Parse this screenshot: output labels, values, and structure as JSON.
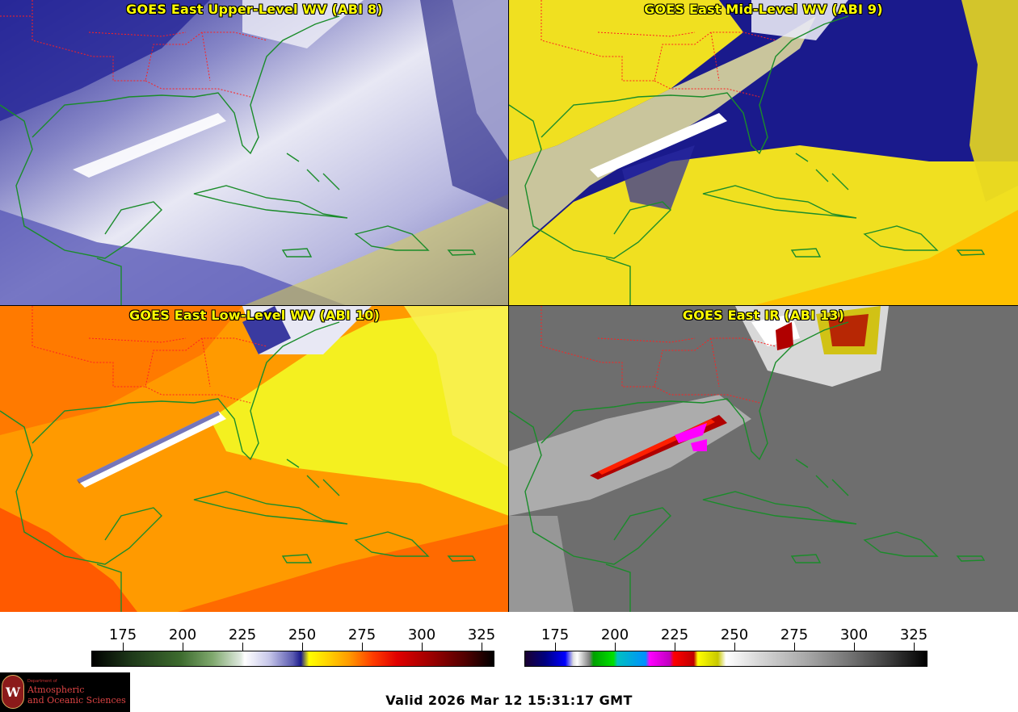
{
  "panels": [
    {
      "title": "GOES East Upper-Level WV (ABI 8)"
    },
    {
      "title": "GOES East Mid-Level WV (ABI 9)"
    },
    {
      "title": "GOES East Low-Level WV (ABI 10)"
    },
    {
      "title": "GOES East IR (ABI 13)"
    }
  ],
  "colorbars": {
    "left": {
      "ticks": [
        "175",
        "200",
        "225",
        "250",
        "275",
        "300",
        "325"
      ]
    },
    "right": {
      "ticks": [
        "175",
        "200",
        "225",
        "250",
        "275",
        "300",
        "325"
      ]
    }
  },
  "valid_time": "Valid 2026 Mar 12 15:31:17 GMT",
  "logo": {
    "department": "Department of",
    "line1": "Atmospheric",
    "line2": "and Oceanic Sciences",
    "seal_letter": "W"
  },
  "colors": {
    "title": "#ffff00",
    "state_borders": "#ff2020",
    "coastlines": "#1a8c2a"
  }
}
